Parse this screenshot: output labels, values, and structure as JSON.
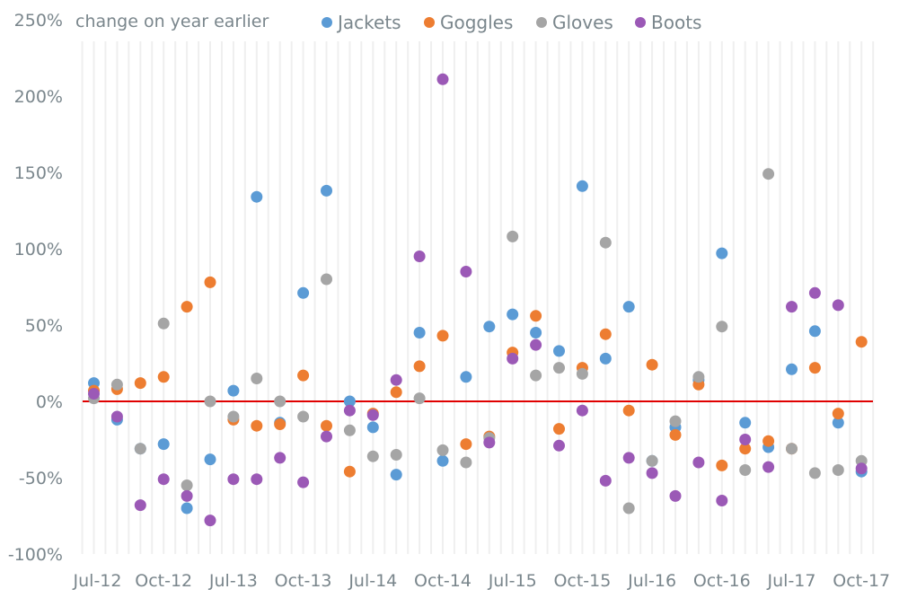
{
  "chart_data": {
    "type": "scatter",
    "title": "change on year earlier",
    "xlabel": "",
    "ylabel": "change on year earlier",
    "ylim": [
      -100,
      250
    ],
    "y_ticks": [
      {
        "value": 250,
        "label": "250%"
      },
      {
        "value": 200,
        "label": "200%"
      },
      {
        "value": 150,
        "label": "150%"
      },
      {
        "value": 100,
        "label": "100%"
      },
      {
        "value": 50,
        "label": "50%"
      },
      {
        "value": 0,
        "label": "0%"
      },
      {
        "value": -50,
        "label": "-50%"
      },
      {
        "value": -100,
        "label": "-100%"
      }
    ],
    "x_tick_labels": [
      {
        "index": 0,
        "label": "Jul-12"
      },
      {
        "index": 3,
        "label": "Oct-12"
      },
      {
        "index": 6,
        "label": "Jul-13"
      },
      {
        "index": 9,
        "label": "Oct-13"
      },
      {
        "index": 12,
        "label": "Jul-14"
      },
      {
        "index": 15,
        "label": "Oct-14"
      },
      {
        "index": 18,
        "label": "Jul-15"
      },
      {
        "index": 21,
        "label": "Oct-15"
      },
      {
        "index": 24,
        "label": "Jul-16"
      },
      {
        "index": 27,
        "label": "Oct-16"
      },
      {
        "index": 30,
        "label": "Jul-17"
      },
      {
        "index": 33,
        "label": "Oct-17"
      }
    ],
    "category_count": 34,
    "grid": true,
    "reference_line": {
      "value": 0,
      "color": "#e00000"
    },
    "legend_position": "top",
    "series": [
      {
        "name": "Jackets",
        "color": "#5b9bd5",
        "values": [
          12,
          -12,
          -31,
          -28,
          -70,
          -38,
          7,
          134,
          -14,
          71,
          138,
          0,
          -17,
          -48,
          45,
          -39,
          16,
          49,
          57,
          45,
          33,
          141,
          28,
          62,
          -39,
          -17,
          14,
          97,
          -14,
          -30,
          21,
          46,
          -14,
          -46
        ]
      },
      {
        "name": "Goggles",
        "color": "#ed7d31",
        "values": [
          7,
          8,
          12,
          16,
          62,
          78,
          -12,
          -16,
          -15,
          17,
          -16,
          -46,
          -8,
          6,
          23,
          43,
          -28,
          -23,
          32,
          56,
          -18,
          22,
          44,
          -6,
          24,
          -22,
          11,
          -42,
          -31,
          -26,
          -31,
          22,
          -8,
          39
        ]
      },
      {
        "name": "Gloves",
        "color": "#a5a5a5",
        "values": [
          2,
          11,
          -31,
          51,
          -55,
          0,
          -10,
          15,
          0,
          -10,
          80,
          -19,
          -36,
          -35,
          2,
          -32,
          -40,
          -24,
          108,
          17,
          22,
          18,
          104,
          -70,
          -39,
          -13,
          16,
          49,
          -45,
          149,
          -31,
          -47,
          -45,
          -39
        ]
      },
      {
        "name": "Boots",
        "color": "#9b59b6",
        "values": [
          5,
          -10,
          -68,
          -51,
          -62,
          -78,
          -51,
          -51,
          -37,
          -53,
          -23,
          -6,
          -9,
          14,
          95,
          211,
          85,
          -27,
          28,
          37,
          -29,
          -6,
          -52,
          -37,
          -47,
          -62,
          -40,
          -65,
          -25,
          -43,
          62,
          71,
          63,
          -44
        ]
      }
    ]
  }
}
